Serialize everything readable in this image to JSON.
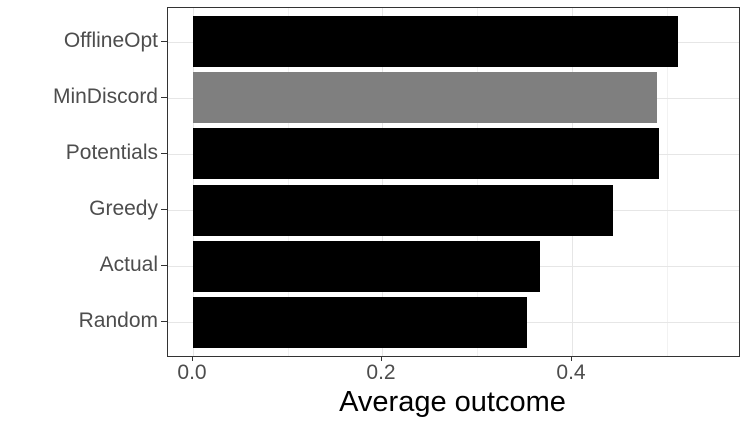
{
  "chart_data": {
    "type": "bar",
    "orientation": "horizontal",
    "title": "",
    "xlabel": "Average outcome",
    "ylabel": "",
    "categories": [
      "OfflineOpt",
      "MinDiscord",
      "Potentials",
      "Greedy",
      "Actual",
      "Random"
    ],
    "values": [
      0.511,
      0.489,
      0.491,
      0.443,
      0.366,
      0.352
    ],
    "bar_colors": [
      "#000000",
      "#7f7f7f",
      "#000000",
      "#000000",
      "#000000",
      "#000000"
    ],
    "xlim": [
      -0.026,
      0.576
    ],
    "x_major_ticks": [
      0.0,
      0.2,
      0.4
    ],
    "x_tick_labels": [
      "0.0",
      "0.2",
      "0.4"
    ],
    "x_minor_gridlines": [
      0.1,
      0.3,
      0.5
    ],
    "grid": true,
    "legend": "none"
  },
  "colors": {
    "background": "#ffffff",
    "panel_border": "#333333",
    "grid_major": "#e6e6e6",
    "grid_minor": "#f2f2f2",
    "axis_text": "#4d4d4d",
    "axis_title": "#000000",
    "tick_mark": "#333333"
  }
}
